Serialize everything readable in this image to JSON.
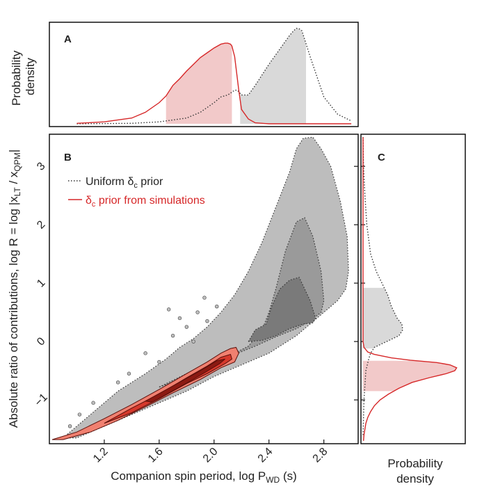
{
  "chart_data": [
    {
      "panel": "A",
      "type": "area",
      "ylabel_lines": [
        "Probability",
        "density"
      ],
      "xlim": [
        0.8,
        3.05
      ],
      "series": [
        {
          "style": "dotted",
          "color": "#333333",
          "x": [
            1.0,
            1.4,
            1.6,
            1.8,
            1.9,
            2.0,
            2.05,
            2.1,
            2.15,
            2.17,
            2.2,
            2.25,
            2.3,
            2.4,
            2.5,
            2.55,
            2.58,
            2.6,
            2.62,
            2.64,
            2.7,
            2.8,
            2.9,
            3.0
          ],
          "y": [
            0.0,
            0.005,
            0.02,
            0.06,
            0.12,
            0.22,
            0.28,
            0.3,
            0.35,
            0.35,
            0.3,
            0.3,
            0.4,
            0.62,
            0.82,
            0.92,
            0.97,
            0.995,
            0.99,
            0.97,
            0.7,
            0.28,
            0.1,
            0.03
          ]
        },
        {
          "style": "solid",
          "color": "#d62728",
          "x": [
            1.0,
            1.2,
            1.4,
            1.5,
            1.6,
            1.65,
            1.7,
            1.75,
            1.8,
            1.85,
            1.9,
            1.95,
            2.0,
            2.05,
            2.08,
            2.1,
            2.12,
            2.13,
            2.15,
            2.18,
            2.2,
            2.25,
            2.3,
            2.4,
            2.6,
            3.0
          ],
          "y": [
            0.005,
            0.02,
            0.06,
            0.12,
            0.22,
            0.29,
            0.4,
            0.47,
            0.55,
            0.62,
            0.69,
            0.74,
            0.79,
            0.83,
            0.84,
            0.84,
            0.83,
            0.81,
            0.7,
            0.35,
            0.15,
            0.05,
            0.01,
            0.0,
            0.0,
            0.0
          ]
        }
      ],
      "shaded_intervals": [
        {
          "x": [
            1.65,
            2.13
          ],
          "color": "#f2c9c9"
        },
        {
          "x": [
            2.19,
            2.67
          ],
          "color": "#d9d9d9"
        }
      ]
    },
    {
      "panel": "B",
      "type": "heatmap",
      "xlabel": "Companion spin period, log P",
      "xlabel_sub": "WD",
      "xlabel_tail": " (s)",
      "ylabel": "Absolute ratio of contributions,  log R = log |x",
      "ylabel_sub1": "LT",
      "ylabel_mid": " / x",
      "ylabel_sub2": "QPM",
      "ylabel_tail": "|",
      "xticks": [
        "1.2",
        "1.6",
        "2.0",
        "2.4",
        "2.8"
      ],
      "xtick_values": [
        1.2,
        1.6,
        2.0,
        2.4,
        2.8
      ],
      "yticks": [
        "3",
        "2",
        "1",
        "0",
        "−1"
      ],
      "ytick_values": [
        3,
        2,
        1,
        0,
        -1
      ],
      "xlim": [
        0.8,
        3.05
      ],
      "ylim": [
        -1.75,
        3.55
      ],
      "legend": {
        "position": "upper-left",
        "entries": [
          {
            "label": "Uniform δ",
            "sub": "c",
            "tail": " prior",
            "style": "dotted",
            "color": "#333333"
          },
          {
            "label": "δ",
            "sub": "c",
            "tail": " prior from simulations",
            "style": "solid",
            "color": "#d62728"
          }
        ]
      },
      "regions": [
        {
          "name": "uniform-outer",
          "color": "#bdbdbd",
          "x": [
            0.9,
            1.3,
            1.5,
            1.65,
            1.75,
            1.85,
            1.95,
            2.05,
            2.15,
            2.25,
            2.35,
            2.45,
            2.55,
            2.6,
            2.65,
            2.72,
            2.78,
            2.85,
            2.92,
            2.97,
            2.98,
            2.96,
            2.9,
            2.8,
            2.7,
            2.6,
            2.5,
            2.4,
            2.3,
            2.2,
            2.1,
            2.0,
            1.8,
            1.6,
            1.4,
            1.2,
            1.0,
            0.9
          ],
          "y": [
            -1.65,
            -0.85,
            -0.55,
            -0.3,
            -0.1,
            0.05,
            0.25,
            0.5,
            0.8,
            1.2,
            1.7,
            2.3,
            2.9,
            3.3,
            3.48,
            3.5,
            3.3,
            3.0,
            2.4,
            1.8,
            1.2,
            0.9,
            0.7,
            0.5,
            0.3,
            0.1,
            -0.05,
            -0.2,
            -0.3,
            -0.4,
            -0.5,
            -0.6,
            -0.85,
            -1.05,
            -1.25,
            -1.45,
            -1.65,
            -1.65
          ]
        },
        {
          "name": "uniform-mid",
          "color": "#9a9a9a",
          "x": [
            1.6,
            1.8,
            2.0,
            2.15,
            2.25,
            2.35,
            2.4,
            2.45,
            2.52,
            2.6,
            2.66,
            2.72,
            2.78,
            2.8,
            2.78,
            2.7,
            2.6,
            2.45,
            2.3,
            2.15,
            2.0,
            1.8,
            1.6
          ],
          "y": [
            -0.78,
            -0.55,
            -0.35,
            -0.2,
            -0.08,
            0.2,
            0.5,
            0.9,
            1.55,
            2.05,
            2.12,
            1.8,
            1.2,
            0.7,
            0.5,
            0.35,
            0.22,
            0.08,
            -0.08,
            -0.22,
            -0.4,
            -0.62,
            -0.78
          ]
        },
        {
          "name": "uniform-inner",
          "color": "#7a7a7a",
          "x": [
            2.25,
            2.3,
            2.38,
            2.42,
            2.48,
            2.55,
            2.62,
            2.7,
            2.74,
            2.72,
            2.65,
            2.55,
            2.45,
            2.35,
            2.25
          ],
          "y": [
            0.0,
            0.2,
            0.3,
            0.6,
            0.9,
            1.05,
            1.1,
            0.7,
            0.4,
            0.32,
            0.3,
            0.22,
            0.1,
            0.02,
            0.0
          ]
        },
        {
          "name": "sim-outer",
          "color": "#f08070",
          "x": [
            0.82,
            1.0,
            1.2,
            1.4,
            1.6,
            1.8,
            1.95,
            2.05,
            2.12,
            2.16,
            2.18,
            2.15,
            2.05,
            1.9,
            1.7,
            1.5,
            1.3,
            1.1,
            0.9,
            0.82
          ],
          "y": [
            -1.68,
            -1.55,
            -1.32,
            -1.08,
            -0.82,
            -0.55,
            -0.35,
            -0.2,
            -0.12,
            -0.1,
            -0.2,
            -0.35,
            -0.45,
            -0.65,
            -0.88,
            -1.12,
            -1.35,
            -1.55,
            -1.68,
            -1.68
          ]
        },
        {
          "name": "sim-mid",
          "color": "#d6392c",
          "x": [
            1.2,
            1.4,
            1.6,
            1.8,
            1.95,
            2.05,
            2.12,
            2.13,
            2.08,
            1.95,
            1.8,
            1.6,
            1.4,
            1.2
          ],
          "y": [
            -1.4,
            -1.14,
            -0.9,
            -0.62,
            -0.42,
            -0.27,
            -0.22,
            -0.3,
            -0.38,
            -0.55,
            -0.72,
            -0.98,
            -1.22,
            -1.4
          ]
        },
        {
          "name": "sim-inner",
          "color": "#8b1a12",
          "x": [
            1.5,
            1.7,
            1.9,
            2.02,
            2.08,
            2.04,
            1.92,
            1.75,
            1.55,
            1.5
          ],
          "y": [
            -1.02,
            -0.76,
            -0.5,
            -0.33,
            -0.3,
            -0.38,
            -0.55,
            -0.78,
            -1.04,
            -1.02
          ]
        }
      ],
      "scatter_points": [
        [
          1.8,
          0.25
        ],
        [
          1.95,
          0.35
        ],
        [
          1.67,
          0.55
        ],
        [
          1.7,
          0.1
        ],
        [
          1.85,
          0.0
        ],
        [
          1.6,
          -0.35
        ],
        [
          1.38,
          -0.55
        ],
        [
          1.3,
          -0.7
        ],
        [
          1.12,
          -1.05
        ],
        [
          1.02,
          -1.25
        ],
        [
          0.95,
          -1.45
        ],
        [
          1.5,
          -0.2
        ],
        [
          2.02,
          0.6
        ],
        [
          1.93,
          0.75
        ],
        [
          1.75,
          0.4
        ],
        [
          1.88,
          0.5
        ]
      ]
    },
    {
      "panel": "C",
      "type": "area",
      "xlabel_lines": [
        "Probability",
        "density"
      ],
      "ylim": [
        -1.75,
        3.55
      ],
      "series": [
        {
          "style": "dotted",
          "color": "#333333",
          "y": [
            3.5,
            3.0,
            2.5,
            2.0,
            1.5,
            1.2,
            1.0,
            0.8,
            0.6,
            0.4,
            0.3,
            0.2,
            0.1,
            0.0,
            -0.1,
            -0.2,
            -0.3,
            -0.5,
            -1.0,
            -1.6
          ],
          "x": [
            0.0,
            0.005,
            0.02,
            0.04,
            0.08,
            0.14,
            0.2,
            0.26,
            0.3,
            0.36,
            0.41,
            0.42,
            0.38,
            0.25,
            0.12,
            0.08,
            0.06,
            0.03,
            0.01,
            0.0
          ]
        },
        {
          "style": "solid",
          "color": "#d62728",
          "y": [
            3.5,
            0.0,
            -0.1,
            -0.18,
            -0.22,
            -0.28,
            -0.32,
            -0.36,
            -0.4,
            -0.45,
            -0.5,
            -0.55,
            -0.62,
            -0.7,
            -0.8,
            -0.9,
            -1.0,
            -1.1,
            -1.2,
            -1.3,
            -1.4,
            -1.5,
            -1.6,
            -1.7
          ],
          "x": [
            0.0,
            0.0,
            0.01,
            0.05,
            0.12,
            0.3,
            0.5,
            0.78,
            0.92,
            0.99,
            0.97,
            0.88,
            0.7,
            0.52,
            0.38,
            0.27,
            0.18,
            0.12,
            0.08,
            0.05,
            0.03,
            0.02,
            0.01,
            0.005
          ]
        }
      ],
      "shaded_intervals": [
        {
          "y": [
            -0.12,
            0.92
          ],
          "color": "#d9d9d9"
        },
        {
          "y": [
            -0.85,
            -0.33
          ],
          "color": "#f2c9c9"
        }
      ]
    }
  ]
}
